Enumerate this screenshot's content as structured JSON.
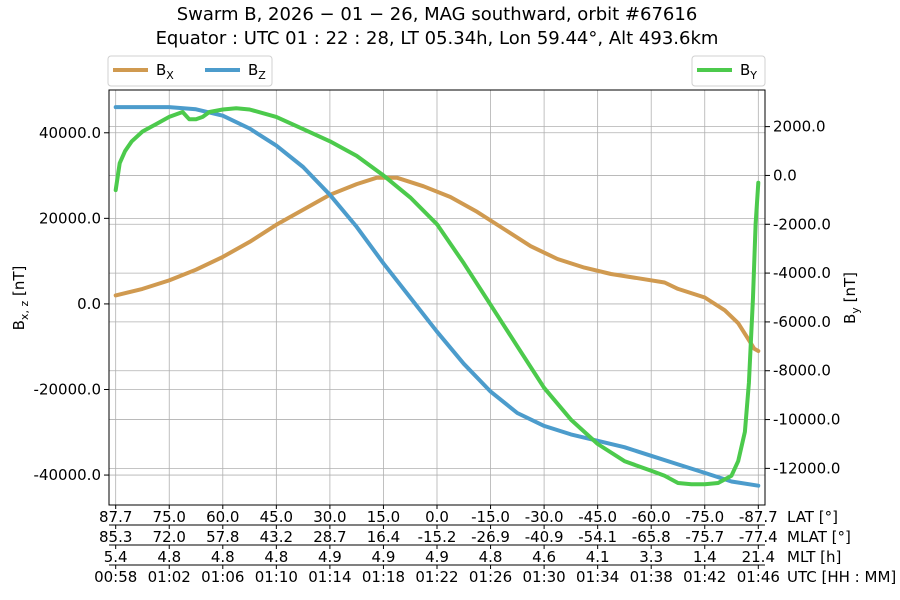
{
  "chart_data": {
    "type": "line",
    "title_line1": "Swarm B,  2026 − 01 − 26,  MAG southward,  orbit #67616",
    "title_line2": "Equator :  UTC 01 : 22 : 28,  LT 05.34h,  Lon 59.44°,  Alt 493.6km",
    "ylabel_left": "B",
    "ylabel_left_sub": "x, z",
    "ylabel_left_unit": " [nT]",
    "ylabel_right": "B",
    "ylabel_right_sub": "y",
    "ylabel_right_unit": " [nT]",
    "x_unit": "minutes since 00:58 UTC",
    "xlim": [
      -0.5,
      48.5
    ],
    "ylim_left": [
      -47000,
      50000
    ],
    "ylim_right": [
      -13500,
      3500
    ],
    "yticks_left": [
      40000,
      20000,
      0,
      -20000,
      -40000
    ],
    "yticks_left_labels": [
      "40000.0",
      "20000.0",
      "0.0",
      "-20000.0",
      "-40000.0"
    ],
    "yticks_right": [
      2000,
      0,
      -2000,
      -4000,
      -6000,
      -8000,
      -10000,
      -12000
    ],
    "yticks_right_labels": [
      "2000.0",
      "0.0",
      "-2000.0",
      "-4000.0",
      "-6000.0",
      "-8000.0",
      "-10000.0",
      "-12000.0"
    ],
    "xticks": [
      0,
      4,
      8,
      12,
      16,
      20,
      24,
      28,
      32,
      36,
      40,
      44,
      48
    ],
    "grid": true,
    "legend_left": "top-left, above axes",
    "legend_right": "top-right, above axes",
    "bottom_axes": [
      {
        "label": "LAT [°]",
        "ticks": [
          "87.7",
          "75.0",
          "60.0",
          "45.0",
          "30.0",
          "15.0",
          "0.0",
          "-15.0",
          "-30.0",
          "-45.0",
          "-60.0",
          "-75.0",
          "-87.7"
        ]
      },
      {
        "label": "MLAT [°]",
        "ticks": [
          "85.3",
          "72.0",
          "57.8",
          "43.2",
          "28.7",
          "16.4",
          "-15.2",
          "-26.9",
          "-40.9",
          "-54.1",
          "-65.8",
          "-75.7",
          "-77.4"
        ]
      },
      {
        "label": "MLT [h]",
        "ticks": [
          "5.4",
          "4.8",
          "4.8",
          "4.8",
          "4.9",
          "4.9",
          "4.9",
          "4.8",
          "4.6",
          "4.1",
          "3.3",
          "1.4",
          "21.4"
        ]
      },
      {
        "label": "UTC [HH : MM]",
        "ticks": [
          "00:58",
          "01:02",
          "01:06",
          "01:10",
          "01:14",
          "01:18",
          "01:22",
          "01:26",
          "01:30",
          "01:34",
          "01:38",
          "01:42",
          "01:46"
        ]
      }
    ],
    "series": [
      {
        "name": "BX",
        "name_main": "B",
        "name_sub": "X",
        "axis": "left",
        "color": "#d09a50",
        "x": [
          0,
          2,
          4,
          6,
          8,
          10,
          12,
          14,
          16,
          18,
          19.5,
          21,
          23,
          25,
          27,
          29,
          31,
          33,
          35,
          37,
          39,
          41,
          42,
          44,
          45.5,
          46.5,
          47.2,
          47.7,
          48
        ],
        "y": [
          2000,
          3500,
          5500,
          8000,
          11000,
          14500,
          18500,
          22000,
          25500,
          28000,
          29500,
          29500,
          27500,
          25000,
          21500,
          17500,
          13500,
          10500,
          8500,
          7000,
          6000,
          5000,
          3500,
          1500,
          -1500,
          -4500,
          -8000,
          -10500,
          -11000
        ]
      },
      {
        "name": "BZ",
        "name_main": "B",
        "name_sub": "Z",
        "axis": "left",
        "color": "#4c9ccc",
        "x": [
          0,
          2,
          4,
          6,
          8,
          10,
          12,
          14,
          16,
          18,
          20,
          22,
          24,
          26,
          28,
          30,
          32,
          34,
          36,
          38,
          40,
          42,
          44,
          46,
          48
        ],
        "y": [
          46000,
          46000,
          46000,
          45500,
          44000,
          41000,
          37000,
          32000,
          25500,
          18000,
          9500,
          1500,
          -6500,
          -14000,
          -20500,
          -25500,
          -28500,
          -30500,
          -32000,
          -33500,
          -35500,
          -37500,
          -39500,
          -41500,
          -42500
        ]
      },
      {
        "name": "BY",
        "name_main": "B",
        "name_sub": "Y",
        "axis": "right",
        "color": "#4cca4c",
        "x": [
          0,
          0.3,
          0.7,
          1.2,
          2,
          3,
          4,
          5,
          5.5,
          6,
          6.5,
          7,
          8,
          9,
          10,
          12,
          14,
          16,
          18,
          20,
          22,
          24,
          26,
          28,
          30,
          32,
          34,
          36,
          38,
          39.5,
          40,
          41,
          42,
          43,
          44,
          45,
          46,
          46.5,
          47,
          47.3,
          47.6,
          47.8,
          48
        ],
        "y": [
          -600,
          500,
          1000,
          1400,
          1800,
          2100,
          2400,
          2600,
          2300,
          2300,
          2400,
          2600,
          2700,
          2750,
          2700,
          2400,
          1900,
          1400,
          800,
          0,
          -900,
          -2000,
          -3600,
          -5300,
          -7000,
          -8700,
          -10000,
          -11000,
          -11700,
          -12000,
          -12100,
          -12300,
          -12600,
          -12650,
          -12650,
          -12600,
          -12300,
          -11700,
          -10500,
          -8500,
          -5000,
          -2000,
          -300
        ]
      }
    ]
  }
}
